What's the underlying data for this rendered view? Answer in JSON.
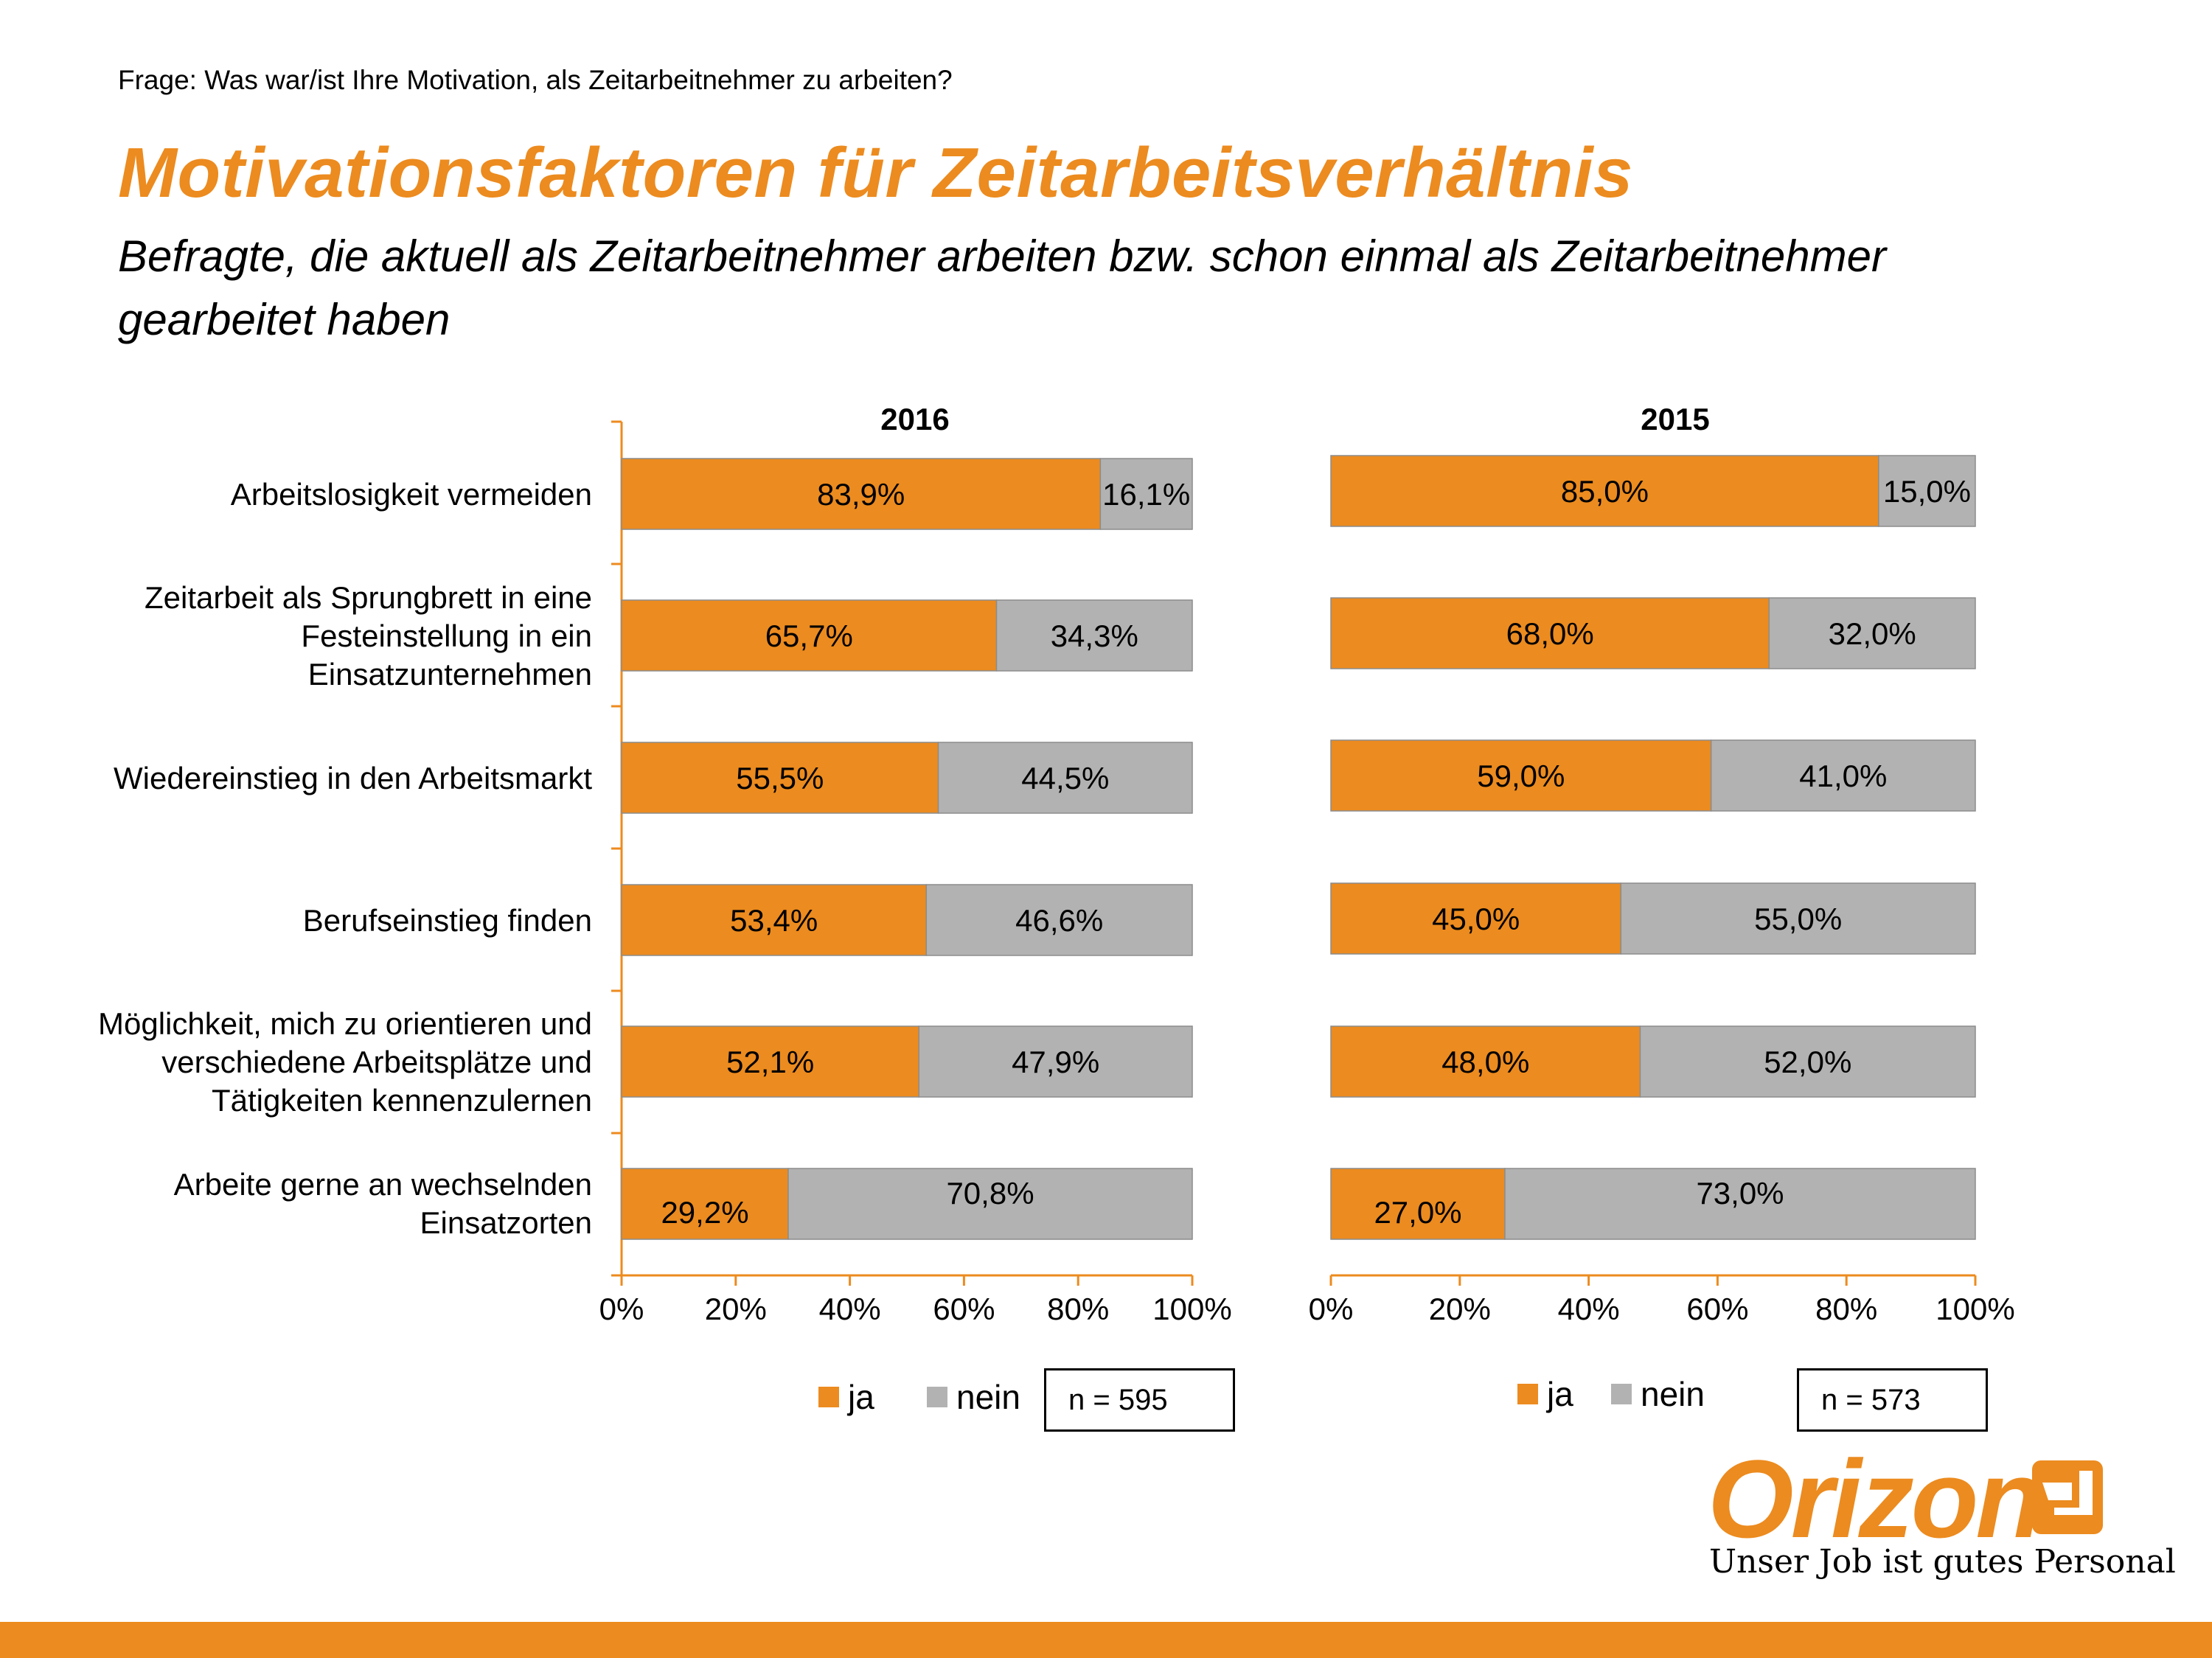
{
  "question": "Frage: Was war/ist Ihre Motivation, als Zeitarbeitnehmer zu arbeiten?",
  "title": "Motivationsfaktoren für Zeitarbeitsverhältnis",
  "subtitle": "Befragte, die aktuell als Zeitarbeitnehmer arbeiten bzw. schon einmal als Zeitarbeitnehmer gearbeitet haben",
  "colors": {
    "ja": "#ec8b1f",
    "nein": "#b2b2b2",
    "accent": "#ec8b1f"
  },
  "categories_display": [
    [
      "Arbeitslosigkeit vermeiden"
    ],
    [
      "Zeitarbeit als Sprungbrett in eine",
      "Festeinstellung in ein",
      "Einsatzunternehmen"
    ],
    [
      "Wiedereinstieg in den Arbeitsmarkt"
    ],
    [
      "Berufseinstieg finden"
    ],
    [
      "Möglichkeit, mich zu orientieren und",
      "verschiedene Arbeitsplätze und",
      "Tätigkeiten kennenzulernen"
    ],
    [
      "Arbeite gerne an wechselnden",
      "Einsatzorten"
    ]
  ],
  "chart_data": [
    {
      "type": "bar",
      "orientation": "horizontal",
      "stacked": "percent",
      "title": "2016",
      "categories": [
        "Arbeitslosigkeit vermeiden",
        "Zeitarbeit als Sprungbrett in eine Festeinstellung in ein Einsatzunternehmen",
        "Wiedereinstieg in den Arbeitsmarkt",
        "Berufseinstieg finden",
        "Möglichkeit, mich zu orientieren und verschiedene Arbeitsplätze und Tätigkeiten kennenzulernen",
        "Arbeite gerne an wechselnden Einsatzorten"
      ],
      "series": [
        {
          "name": "ja",
          "values": [
            83.9,
            65.7,
            55.5,
            53.4,
            52.1,
            29.2
          ]
        },
        {
          "name": "nein",
          "values": [
            16.1,
            34.3,
            44.5,
            46.6,
            47.9,
            70.8
          ]
        }
      ],
      "data_labels": {
        "ja": [
          "83,9%",
          "65,7%",
          "55,5%",
          "53,4%",
          "52,1%",
          "29,2%"
        ],
        "nein": [
          "16,1%",
          "34,3%",
          "44,5%",
          "46,6%",
          "47,9%",
          "70,8%"
        ]
      },
      "xlim": [
        0,
        100
      ],
      "xticks": [
        "0%",
        "20%",
        "40%",
        "60%",
        "80%",
        "100%"
      ],
      "legend": [
        "ja",
        "nein"
      ],
      "note": "n = 595"
    },
    {
      "type": "bar",
      "orientation": "horizontal",
      "stacked": "percent",
      "title": "2015",
      "categories": [
        "Arbeitslosigkeit vermeiden",
        "Zeitarbeit als Sprungbrett in eine Festeinstellung in ein Einsatzunternehmen",
        "Wiedereinstieg in den Arbeitsmarkt",
        "Berufseinstieg finden",
        "Möglichkeit, mich zu orientieren und verschiedene Arbeitsplätze und Tätigkeiten kennenzulernen",
        "Arbeite gerne an wechselnden Einsatzorten"
      ],
      "series": [
        {
          "name": "ja",
          "values": [
            85.0,
            68.0,
            59.0,
            45.0,
            48.0,
            27.0
          ]
        },
        {
          "name": "nein",
          "values": [
            15.0,
            32.0,
            41.0,
            55.0,
            52.0,
            73.0
          ]
        }
      ],
      "data_labels": {
        "ja": [
          "85,0%",
          "68,0%",
          "59,0%",
          "45,0%",
          "48,0%",
          "27,0%"
        ],
        "nein": [
          "15,0%",
          "32,0%",
          "41,0%",
          "55,0%",
          "52,0%",
          "73,0%"
        ]
      },
      "xlim": [
        0,
        100
      ],
      "xticks": [
        "0%",
        "20%",
        "40%",
        "60%",
        "80%",
        "100%"
      ],
      "legend": [
        "ja",
        "nein"
      ],
      "note": "n = 573"
    }
  ],
  "logo": {
    "word": "Orizon",
    "tagline": "Unser Job ist gutes Personal"
  }
}
